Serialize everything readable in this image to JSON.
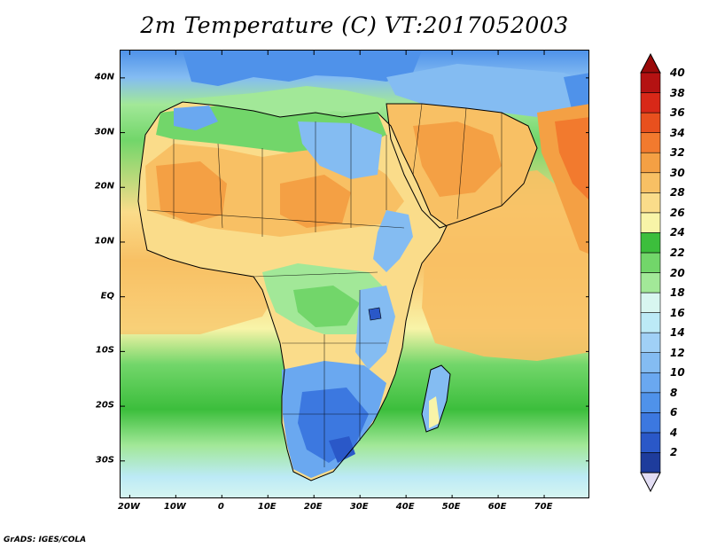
{
  "title": "2m Temperature (C) VT:2017052003",
  "credit": "GrADS: IGES/COLA",
  "map": {
    "region": "Africa and Arabian Peninsula",
    "lon_range": [
      -22,
      80
    ],
    "lat_range": [
      -37,
      45
    ],
    "lat_ticks": [
      {
        "lat": 40,
        "label": "40N"
      },
      {
        "lat": 30,
        "label": "30N"
      },
      {
        "lat": 20,
        "label": "20N"
      },
      {
        "lat": 10,
        "label": "10N"
      },
      {
        "lat": 0,
        "label": "EQ"
      },
      {
        "lat": -10,
        "label": "10S"
      },
      {
        "lat": -20,
        "label": "20S"
      },
      {
        "lat": -30,
        "label": "30S"
      }
    ],
    "lon_ticks": [
      {
        "lon": -20,
        "label": "20W"
      },
      {
        "lon": -10,
        "label": "10W"
      },
      {
        "lon": 0,
        "label": "0"
      },
      {
        "lon": 10,
        "label": "10E"
      },
      {
        "lon": 20,
        "label": "20E"
      },
      {
        "lon": 30,
        "label": "30E"
      },
      {
        "lon": 40,
        "label": "40E"
      },
      {
        "lon": 50,
        "label": "50E"
      },
      {
        "lon": 60,
        "label": "60E"
      },
      {
        "lon": 70,
        "label": "70E"
      }
    ]
  },
  "colorbar": {
    "levels": [
      "2",
      "4",
      "6",
      "8",
      "10",
      "12",
      "14",
      "16",
      "18",
      "20",
      "22",
      "24",
      "26",
      "28",
      "30",
      "32",
      "34",
      "36",
      "38",
      "40"
    ],
    "colors": [
      "#1e3c9c",
      "#2a58c8",
      "#3c78e0",
      "#4f92ea",
      "#6aa8f0",
      "#84bcf2",
      "#a0d0f6",
      "#bceaf6",
      "#d8f6f0",
      "#a2e898",
      "#72d66a",
      "#3cbe3c",
      "#f8f4a8",
      "#fadc8a",
      "#f8c064",
      "#f4a044",
      "#f27a2e",
      "#e8501e",
      "#d82818",
      "#b41212"
    ],
    "low_extend_color": "#e2ddf4",
    "high_extend_color": "#9a0a0a"
  }
}
